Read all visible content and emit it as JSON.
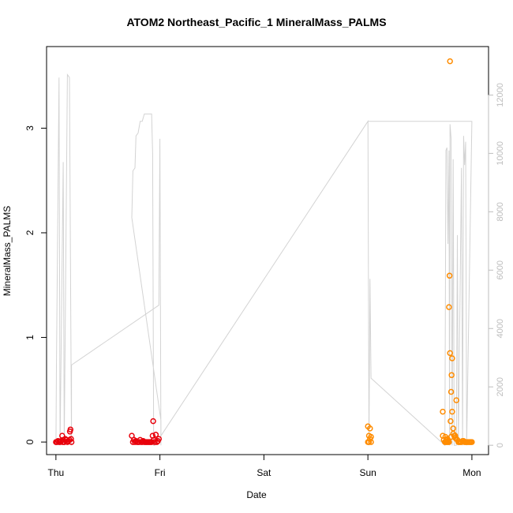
{
  "chart_data": {
    "type": "scatter",
    "title": "ATOM2 Northeast_Pacific_1 MineralMass_PALMS",
    "xlabel": "Date",
    "ylabel": "MineralMass_PALMS",
    "x_ticks": [
      "Thu",
      "Fri",
      "Sat",
      "Sun",
      "Mon"
    ],
    "x_tick_values": [
      0,
      1,
      2,
      3,
      4
    ],
    "xlim": [
      -0.09,
      4.16
    ],
    "ylim": [
      -0.12,
      3.78
    ],
    "y_ticks": [
      0,
      1,
      2,
      3
    ],
    "y2_ticks": [
      0,
      2000,
      4000,
      6000,
      8000,
      10000,
      12000
    ],
    "y2lim": [
      -320,
      13660
    ],
    "grid": false,
    "series": [
      {
        "color": "#e8000b",
        "values": [
          [
            0.0,
            0.0
          ],
          [
            0.01,
            0.0
          ],
          [
            0.02,
            0.01
          ],
          [
            0.03,
            0.0
          ],
          [
            0.04,
            0.0
          ],
          [
            0.05,
            0.01
          ],
          [
            0.06,
            0.06
          ],
          [
            0.065,
            0.0
          ],
          [
            0.07,
            0.02
          ],
          [
            0.08,
            0.0
          ],
          [
            0.09,
            0.03
          ],
          [
            0.1,
            0.02
          ],
          [
            0.11,
            0.0
          ],
          [
            0.12,
            0.01
          ],
          [
            0.13,
            0.02
          ],
          [
            0.135,
            0.1
          ],
          [
            0.14,
            0.12
          ],
          [
            0.145,
            0.03
          ],
          [
            0.15,
            0.0
          ],
          [
            0.73,
            0.06
          ],
          [
            0.74,
            0.0
          ],
          [
            0.75,
            0.02
          ],
          [
            0.76,
            0.0
          ],
          [
            0.77,
            0.01
          ],
          [
            0.78,
            0.0
          ],
          [
            0.79,
            0.0
          ],
          [
            0.8,
            0.0
          ],
          [
            0.81,
            0.02
          ],
          [
            0.82,
            0.0
          ],
          [
            0.83,
            0.0
          ],
          [
            0.84,
            0.01
          ],
          [
            0.85,
            0.0
          ],
          [
            0.86,
            0.0
          ],
          [
            0.87,
            0.0
          ],
          [
            0.88,
            0.0
          ],
          [
            0.89,
            0.0
          ],
          [
            0.9,
            0.0
          ],
          [
            0.91,
            0.0
          ],
          [
            0.92,
            0.0
          ],
          [
            0.93,
            0.06
          ],
          [
            0.935,
            0.2
          ],
          [
            0.94,
            0.02
          ],
          [
            0.95,
            0.0
          ],
          [
            0.96,
            0.07
          ],
          [
            0.97,
            0.0
          ],
          [
            0.98,
            0.01
          ],
          [
            0.99,
            0.03
          ]
        ]
      },
      {
        "color": "#ff8c00",
        "values": [
          [
            3.0,
            0.15
          ],
          [
            3.01,
            0.06
          ],
          [
            3.02,
            0.13
          ],
          [
            3.0,
            0.0
          ],
          [
            3.01,
            0.0
          ],
          [
            3.02,
            0.03
          ],
          [
            3.03,
            0.05
          ],
          [
            3.03,
            0.0
          ],
          [
            3.72,
            0.29
          ],
          [
            3.72,
            0.06
          ],
          [
            3.73,
            0.02
          ],
          [
            3.74,
            0.0
          ],
          [
            3.75,
            0.0
          ],
          [
            3.76,
            0.0
          ],
          [
            3.77,
            0.0
          ],
          [
            3.78,
            0.0
          ],
          [
            3.78,
            1.29
          ],
          [
            3.785,
            1.59
          ],
          [
            3.79,
            0.85
          ],
          [
            3.79,
            3.64
          ],
          [
            3.795,
            0.2
          ],
          [
            3.8,
            0.48
          ],
          [
            3.805,
            0.64
          ],
          [
            3.81,
            0.8
          ],
          [
            3.81,
            0.29
          ],
          [
            3.82,
            0.13
          ],
          [
            3.83,
            0.06
          ],
          [
            3.84,
            0.06
          ],
          [
            3.85,
            0.4
          ],
          [
            3.85,
            0.03
          ],
          [
            3.86,
            0.02
          ],
          [
            3.87,
            0.0
          ],
          [
            3.88,
            0.0
          ],
          [
            3.89,
            0.0
          ],
          [
            3.9,
            0.0
          ],
          [
            3.91,
            0.01
          ],
          [
            3.92,
            0.01
          ],
          [
            3.93,
            0.0
          ],
          [
            3.94,
            0.0
          ],
          [
            3.95,
            0.0
          ],
          [
            3.96,
            0.0
          ],
          [
            3.97,
            0.0
          ],
          [
            3.98,
            0.0
          ],
          [
            3.99,
            0.0
          ],
          [
            4.0,
            0.0
          ],
          [
            3.745,
            0.05
          ],
          [
            3.755,
            0.02
          ],
          [
            3.765,
            0.03
          ],
          [
            3.775,
            0.01
          ],
          [
            3.8,
            0.05
          ],
          [
            3.82,
            0.08
          ],
          [
            3.84,
            0.04
          ]
        ]
      }
    ],
    "secondary_line": {
      "color": "#d3d3d3",
      "points": [
        [
          0.0,
          0
        ],
        [
          0.005,
          2700
        ],
        [
          0.03,
          12600
        ],
        [
          0.04,
          0
        ],
        [
          0.07,
          9700
        ],
        [
          0.08,
          0
        ],
        [
          0.11,
          12700
        ],
        [
          0.13,
          12600
        ],
        [
          0.15,
          0
        ],
        [
          0.15,
          800
        ],
        [
          0.15,
          2750
        ],
        [
          0.99,
          4800
        ],
        [
          1.0,
          10500
        ],
        [
          1.01,
          0
        ],
        [
          1.01,
          850
        ],
        [
          0.73,
          7800
        ],
        [
          0.74,
          9400
        ],
        [
          0.76,
          9500
        ],
        [
          0.77,
          10600
        ],
        [
          0.79,
          10700
        ],
        [
          0.81,
          11100
        ],
        [
          0.83,
          11100
        ],
        [
          0.85,
          11350
        ],
        [
          0.92,
          11350
        ],
        [
          0.93,
          10000
        ],
        [
          0.94,
          0
        ],
        [
          0.95,
          0
        ],
        [
          3.0,
          11100
        ],
        [
          3.01,
          0
        ],
        [
          3.02,
          5700
        ],
        [
          3.03,
          2300
        ],
        [
          3.74,
          0
        ],
        [
          3.75,
          10100
        ],
        [
          3.76,
          10200
        ],
        [
          3.77,
          6900
        ],
        [
          3.78,
          10100
        ],
        [
          3.785,
          0
        ],
        [
          3.79,
          11000
        ],
        [
          3.8,
          10500
        ],
        [
          3.81,
          0
        ],
        [
          3.82,
          9800
        ],
        [
          3.83,
          0
        ],
        [
          3.85,
          0
        ],
        [
          3.86,
          7200
        ],
        [
          3.87,
          0
        ],
        [
          3.9,
          9500
        ],
        [
          3.91,
          0
        ],
        [
          3.92,
          10600
        ],
        [
          3.93,
          9600
        ],
        [
          3.94,
          10400
        ],
        [
          3.95,
          0
        ],
        [
          4.0,
          11100
        ],
        [
          3.0,
          11100
        ]
      ]
    }
  }
}
